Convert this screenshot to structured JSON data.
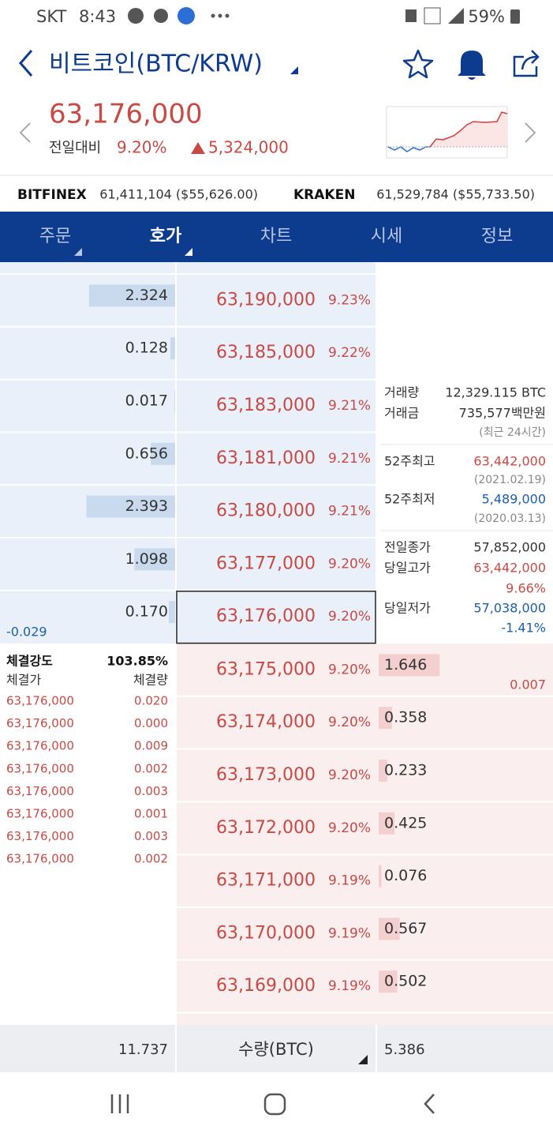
{
  "status": {
    "carrier": "SKT",
    "time": "8:43",
    "battery": "59%"
  },
  "header": {
    "title": "비트코인(BTC/KRW)"
  },
  "price": {
    "current": "63,176,000",
    "label": "전일대비",
    "change_pct": "9.20%",
    "change": "5,324,000"
  },
  "exchanges": [
    {
      "name": "BITFINEX",
      "value": "61,411,104 ($55,626.00)"
    },
    {
      "name": "KRAKEN",
      "value": "61,529,784 ($55,733.50)"
    }
  ],
  "tabs": [
    "주문",
    "호가",
    "차트",
    "시세",
    "정보"
  ],
  "active_tab": 1,
  "asks": [
    {
      "qty": "2.324",
      "price": "63,190,000",
      "pct": "9.23%"
    },
    {
      "qty": "0.128",
      "price": "63,185,000",
      "pct": "9.22%"
    },
    {
      "qty": "0.017",
      "price": "63,183,000",
      "pct": "9.21%"
    },
    {
      "qty": "0.656",
      "price": "63,181,000",
      "pct": "9.21%"
    },
    {
      "qty": "2.393",
      "price": "63,180,000",
      "pct": "9.21%"
    },
    {
      "qty": "1.098",
      "price": "63,177,000",
      "pct": "9.20%"
    },
    {
      "qty": "0.170",
      "price": "63,176,000",
      "pct": "9.20%"
    }
  ],
  "ask_extra": "-0.029",
  "bids": [
    {
      "price": "63,175,000",
      "pct": "9.20%",
      "qty": "1.646"
    },
    {
      "price": "63,174,000",
      "pct": "9.20%",
      "qty": "0.358"
    },
    {
      "price": "63,173,000",
      "pct": "9.20%",
      "qty": "0.233"
    },
    {
      "price": "63,172,000",
      "pct": "9.20%",
      "qty": "0.425"
    },
    {
      "price": "63,171,000",
      "pct": "9.19%",
      "qty": "0.076"
    },
    {
      "price": "63,170,000",
      "pct": "9.19%",
      "qty": "0.567"
    },
    {
      "price": "63,169,000",
      "pct": "9.19%",
      "qty": "0.502"
    }
  ],
  "bid_extra": "0.007",
  "info": [
    {
      "label": "거래량",
      "value": "12,329.115 BTC"
    },
    {
      "label": "거래금",
      "value": "735,577백만원",
      "note": "(최근 24시간)"
    },
    {
      "label": "52주최고",
      "value": "63,442,000",
      "note": "(2021.02.19)"
    },
    {
      "label": "52주최저",
      "value": "5,489,000",
      "note": "(2020.03.13)"
    },
    {
      "label": "전일종가",
      "value": "57,852,000"
    },
    {
      "label": "당일고가",
      "value": "63,442,000",
      "note": "9.66%"
    },
    {
      "label": "당일저가",
      "value": "57,038,000",
      "note": "-1.41%"
    }
  ],
  "trades": {
    "strength_label": "체결강도",
    "strength": "103.85%",
    "price_header": "체결가",
    "qty_header": "체결량",
    "rows": [
      [
        "63,176,000",
        "0.020"
      ],
      [
        "63,176,000",
        "0.000"
      ],
      [
        "63,176,000",
        "0.009"
      ],
      [
        "63,176,000",
        "0.002"
      ],
      [
        "63,176,000",
        "0.003"
      ],
      [
        "63,176,000",
        "0.001"
      ],
      [
        "63,176,000",
        "0.003"
      ],
      [
        "63,176,000",
        "0.002"
      ]
    ]
  },
  "footer": {
    "ask_total": "11.737",
    "unit": "수량(BTC)",
    "bid_total": "5.386"
  }
}
